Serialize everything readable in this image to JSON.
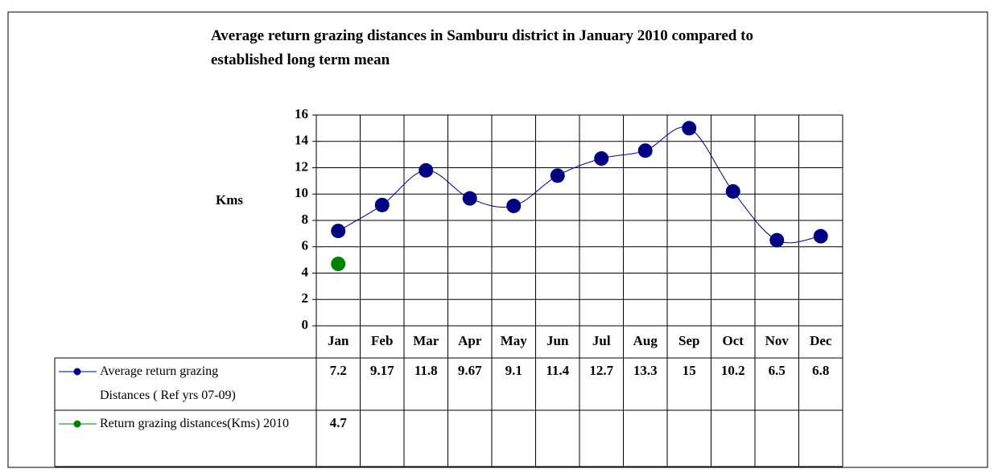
{
  "chart_data": {
    "type": "line",
    "title": "Average return grazing distances in Samburu district in January 2010 compared to established long term mean",
    "y_label": "Kms",
    "categories": [
      "Jan",
      "Feb",
      "Mar",
      "Apr",
      "May",
      "Jun",
      "Jul",
      "Aug",
      "Sep",
      "Oct",
      "Nov",
      "Dec"
    ],
    "series": [
      {
        "name": "Average return grazing Distances ( Ref yrs 07-09)",
        "color": "#000080",
        "values": [
          7.2,
          9.17,
          11.8,
          9.67,
          9.1,
          11.4,
          12.7,
          13.3,
          15,
          10.2,
          6.5,
          6.8
        ]
      },
      {
        "name": "Return grazing distances(Kms) 2010",
        "color": "#008000",
        "values": [
          4.7,
          null,
          null,
          null,
          null,
          null,
          null,
          null,
          null,
          null,
          null,
          null
        ]
      }
    ],
    "ylim": [
      0,
      16
    ],
    "yticks": [
      0,
      2,
      4,
      6,
      8,
      10,
      12,
      14,
      16
    ],
    "grid": true,
    "data_table": true
  }
}
